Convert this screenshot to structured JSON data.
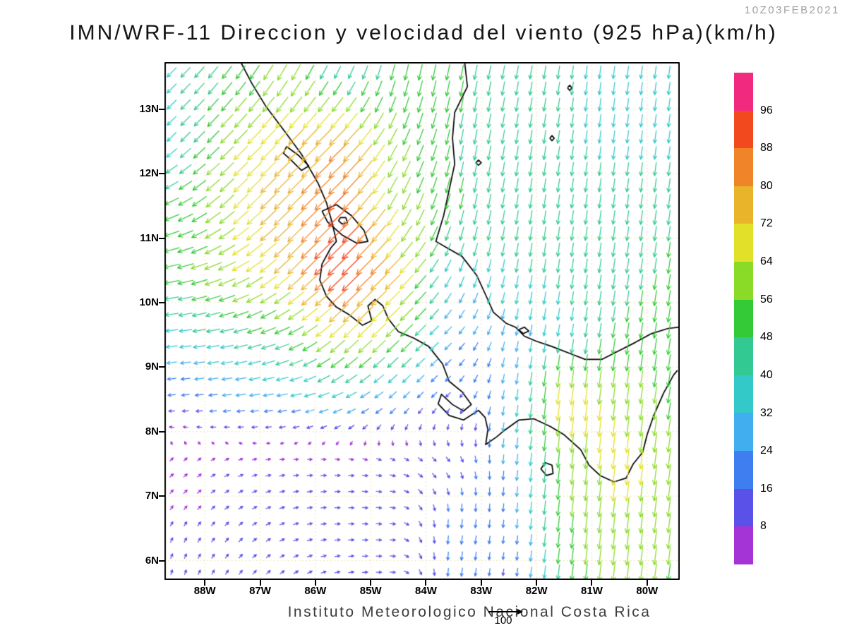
{
  "header": {
    "timestamp": "10Z03FEB2021",
    "title": "IMN/WRF-11 Direccion y velocidad del viento (925 hPa)(km/h)"
  },
  "footer": {
    "caption": "Instituto Meteorologico Nacional Costa Rica",
    "reference_value": "100"
  },
  "axes": {
    "lat_labels": [
      "13N",
      "12N",
      "11N",
      "10N",
      "9N",
      "8N",
      "7N",
      "6N"
    ],
    "lat_values": [
      13,
      12,
      11,
      10,
      9,
      8,
      7,
      6
    ],
    "lon_labels": [
      "88W",
      "87W",
      "86W",
      "85W",
      "84W",
      "83W",
      "82W",
      "81W",
      "80W"
    ],
    "lon_values": [
      -88,
      -87,
      -86,
      -85,
      -84,
      -83,
      -82,
      -81,
      -80
    ]
  },
  "chart_data": {
    "type": "vector_field",
    "title": "IMN/WRF-11 Direccion y velocidad del viento (925 hPa)(km/h)",
    "valid_time": "10Z03FEB2021",
    "units": "km/h",
    "pressure_level_hpa": 925,
    "lon_range": [
      -88.73,
      -79.41
    ],
    "lat_range": [
      5.7,
      13.73
    ],
    "grid_on": true,
    "reference_arrow_kmh": 100,
    "speed_scale": {
      "levels": [
        8,
        16,
        24,
        32,
        40,
        48,
        56,
        64,
        72,
        80,
        88,
        96
      ],
      "colors": [
        "#a434d6",
        "#5a52e8",
        "#3f7ef0",
        "#41aef0",
        "#33c9c9",
        "#33c993",
        "#33c937",
        "#8ada28",
        "#e3e02a",
        "#e9b42a",
        "#ef8428",
        "#f2491f",
        "#f22a7f"
      ]
    },
    "wind_grid": {
      "lons": [
        -88.5,
        -87.5,
        -86.5,
        -85.5,
        -84.5,
        -83.5,
        -82.5,
        -81.5,
        -80.5,
        -79.5
      ],
      "lats": [
        13.5,
        12.5,
        11.5,
        10.5,
        9.5,
        8.5,
        7.5,
        6.5,
        5.5
      ],
      "u_kmh": [
        [
          -28,
          -30,
          -30,
          -18,
          -12,
          -10,
          -8,
          -6,
          -5,
          -5
        ],
        [
          -27,
          -44,
          -51,
          -58,
          -25,
          -10,
          -7,
          -6,
          -5,
          -5
        ],
        [
          -45,
          -47,
          -55,
          -64,
          -28,
          -12,
          -7,
          -6,
          -6,
          -6
        ],
        [
          -51,
          -58,
          -54,
          -69,
          -51,
          -14,
          -7,
          -6,
          -7,
          -7
        ],
        [
          -36,
          -43,
          -48,
          -51,
          -43,
          -17,
          -6,
          -6,
          -8,
          -8
        ],
        [
          -16,
          -24,
          -30,
          -31,
          -17,
          -9,
          -4,
          -9,
          -8,
          -8
        ],
        [
          6,
          8,
          10,
          10,
          10,
          8,
          -3,
          -6,
          -8,
          -8
        ],
        [
          4,
          6,
          8,
          10,
          10,
          -3,
          -2,
          -6,
          -8,
          -7
        ],
        [
          2,
          4,
          7,
          9,
          10,
          -3,
          -2,
          -6,
          -7,
          -7
        ]
      ],
      "v_kmh": [
        [
          -28,
          -40,
          -52,
          -36,
          -50,
          -49,
          -41,
          -40,
          -38,
          -38
        ],
        [
          -27,
          -44,
          -51,
          -58,
          -52,
          -47,
          -43,
          -40,
          -38,
          -38
        ],
        [
          -21,
          -46,
          -55,
          -63,
          -55,
          -48,
          -43,
          -42,
          -42,
          -46
        ],
        [
          -10,
          -27,
          -54,
          -68,
          -51,
          -33,
          -39,
          -42,
          -45,
          -49
        ],
        [
          -4,
          -9,
          -20,
          -50,
          -42,
          -17,
          -27,
          -35,
          -49,
          -53
        ],
        [
          -2,
          -3,
          -5,
          -13,
          -16,
          -9,
          -26,
          -72,
          -61,
          -53
        ],
        [
          5,
          3,
          1,
          0,
          -3,
          -9,
          -26,
          -58,
          -67,
          -61
        ],
        [
          7,
          6,
          3,
          0,
          -1,
          -24,
          -18,
          -54,
          -63,
          -58
        ],
        [
          8,
          7,
          6,
          3,
          -1,
          -22,
          -13,
          -50,
          -60,
          -53
        ]
      ]
    },
    "basemap": {
      "coastlines": [
        [
          [
            -87.35,
            13.73
          ],
          [
            -87.15,
            13.4
          ],
          [
            -86.9,
            13.05
          ],
          [
            -86.55,
            12.65
          ],
          [
            -86.25,
            12.3
          ],
          [
            -85.95,
            11.85
          ],
          [
            -85.8,
            11.55
          ],
          [
            -85.7,
            11.25
          ],
          [
            -85.62,
            10.95
          ],
          [
            -85.72,
            10.85
          ],
          [
            -85.88,
            10.6
          ],
          [
            -85.92,
            10.35
          ],
          [
            -85.8,
            10.1
          ],
          [
            -85.62,
            9.93
          ],
          [
            -85.4,
            9.82
          ],
          [
            -85.15,
            9.65
          ],
          [
            -84.98,
            9.72
          ],
          [
            -85.05,
            9.95
          ],
          [
            -84.92,
            10.05
          ],
          [
            -84.78,
            9.95
          ],
          [
            -84.68,
            9.75
          ],
          [
            -84.5,
            9.55
          ],
          [
            -84.22,
            9.45
          ],
          [
            -83.95,
            9.32
          ],
          [
            -83.7,
            9.05
          ],
          [
            -83.58,
            8.78
          ],
          [
            -83.35,
            8.62
          ],
          [
            -83.18,
            8.42
          ],
          [
            -83.32,
            8.32
          ],
          [
            -83.52,
            8.42
          ],
          [
            -83.72,
            8.58
          ],
          [
            -83.78,
            8.43
          ],
          [
            -83.58,
            8.25
          ],
          [
            -83.32,
            8.18
          ],
          [
            -83.05,
            8.33
          ],
          [
            -82.93,
            8.22
          ],
          [
            -82.88,
            8.03
          ],
          [
            -82.92,
            7.8
          ],
          [
            -82.72,
            7.92
          ],
          [
            -82.58,
            8.02
          ],
          [
            -82.32,
            8.18
          ],
          [
            -82.05,
            8.2
          ],
          [
            -81.75,
            8.08
          ],
          [
            -81.5,
            7.95
          ],
          [
            -81.2,
            7.72
          ],
          [
            -81.05,
            7.48
          ],
          [
            -80.85,
            7.32
          ],
          [
            -80.6,
            7.22
          ],
          [
            -80.38,
            7.28
          ],
          [
            -80.25,
            7.5
          ],
          [
            -80.08,
            7.68
          ],
          [
            -80.0,
            7.95
          ],
          [
            -79.88,
            8.25
          ],
          [
            -79.7,
            8.6
          ],
          [
            -79.52,
            8.88
          ],
          [
            -79.45,
            8.95
          ]
        ],
        [
          [
            -83.3,
            13.73
          ],
          [
            -83.25,
            13.35
          ],
          [
            -83.48,
            12.95
          ],
          [
            -83.52,
            12.55
          ],
          [
            -83.48,
            12.15
          ],
          [
            -83.58,
            11.75
          ],
          [
            -83.68,
            11.35
          ],
          [
            -83.82,
            10.95
          ],
          [
            -83.62,
            10.85
          ],
          [
            -83.35,
            10.72
          ],
          [
            -83.08,
            10.42
          ],
          [
            -82.92,
            10.12
          ],
          [
            -82.78,
            9.85
          ],
          [
            -82.55,
            9.68
          ],
          [
            -82.38,
            9.62
          ],
          [
            -82.22,
            9.48
          ],
          [
            -82.0,
            9.4
          ],
          [
            -81.72,
            9.32
          ],
          [
            -81.42,
            9.22
          ],
          [
            -81.12,
            9.12
          ],
          [
            -80.82,
            9.12
          ],
          [
            -80.52,
            9.25
          ],
          [
            -80.22,
            9.38
          ],
          [
            -79.92,
            9.52
          ],
          [
            -79.62,
            9.6
          ],
          [
            -79.41,
            9.62
          ]
        ],
        [
          [
            -85.88,
            11.42
          ],
          [
            -85.62,
            11.52
          ],
          [
            -85.35,
            11.35
          ],
          [
            -85.12,
            11.12
          ],
          [
            -85.05,
            10.95
          ],
          [
            -85.25,
            10.92
          ],
          [
            -85.52,
            11.05
          ],
          [
            -85.78,
            11.25
          ],
          [
            -85.88,
            11.42
          ]
        ],
        [
          [
            -85.55,
            11.32
          ],
          [
            -85.45,
            11.32
          ],
          [
            -85.42,
            11.24
          ],
          [
            -85.52,
            11.22
          ],
          [
            -85.58,
            11.27
          ],
          [
            -85.55,
            11.32
          ]
        ],
        [
          [
            -86.52,
            12.42
          ],
          [
            -86.3,
            12.28
          ],
          [
            -86.12,
            12.12
          ],
          [
            -86.25,
            12.05
          ],
          [
            -86.45,
            12.22
          ],
          [
            -86.58,
            12.32
          ],
          [
            -86.52,
            12.42
          ]
        ],
        [
          [
            -81.85,
            7.52
          ],
          [
            -81.72,
            7.48
          ],
          [
            -81.7,
            7.35
          ],
          [
            -81.82,
            7.32
          ],
          [
            -81.92,
            7.42
          ],
          [
            -81.85,
            7.52
          ]
        ],
        [
          [
            -83.1,
            12.17
          ],
          [
            -83.05,
            12.21
          ],
          [
            -83.0,
            12.17
          ],
          [
            -83.05,
            12.13
          ],
          [
            -83.1,
            12.17
          ]
        ],
        [
          [
            -81.44,
            13.33
          ],
          [
            -81.4,
            13.37
          ],
          [
            -81.36,
            13.33
          ],
          [
            -81.4,
            13.29
          ],
          [
            -81.44,
            13.33
          ]
        ],
        [
          [
            -81.76,
            12.55
          ],
          [
            -81.72,
            12.59
          ],
          [
            -81.68,
            12.55
          ],
          [
            -81.72,
            12.51
          ],
          [
            -81.76,
            12.55
          ]
        ],
        [
          [
            -82.32,
            9.58
          ],
          [
            -82.22,
            9.62
          ],
          [
            -82.14,
            9.56
          ],
          [
            -82.24,
            9.52
          ],
          [
            -82.32,
            9.58
          ]
        ]
      ]
    }
  }
}
